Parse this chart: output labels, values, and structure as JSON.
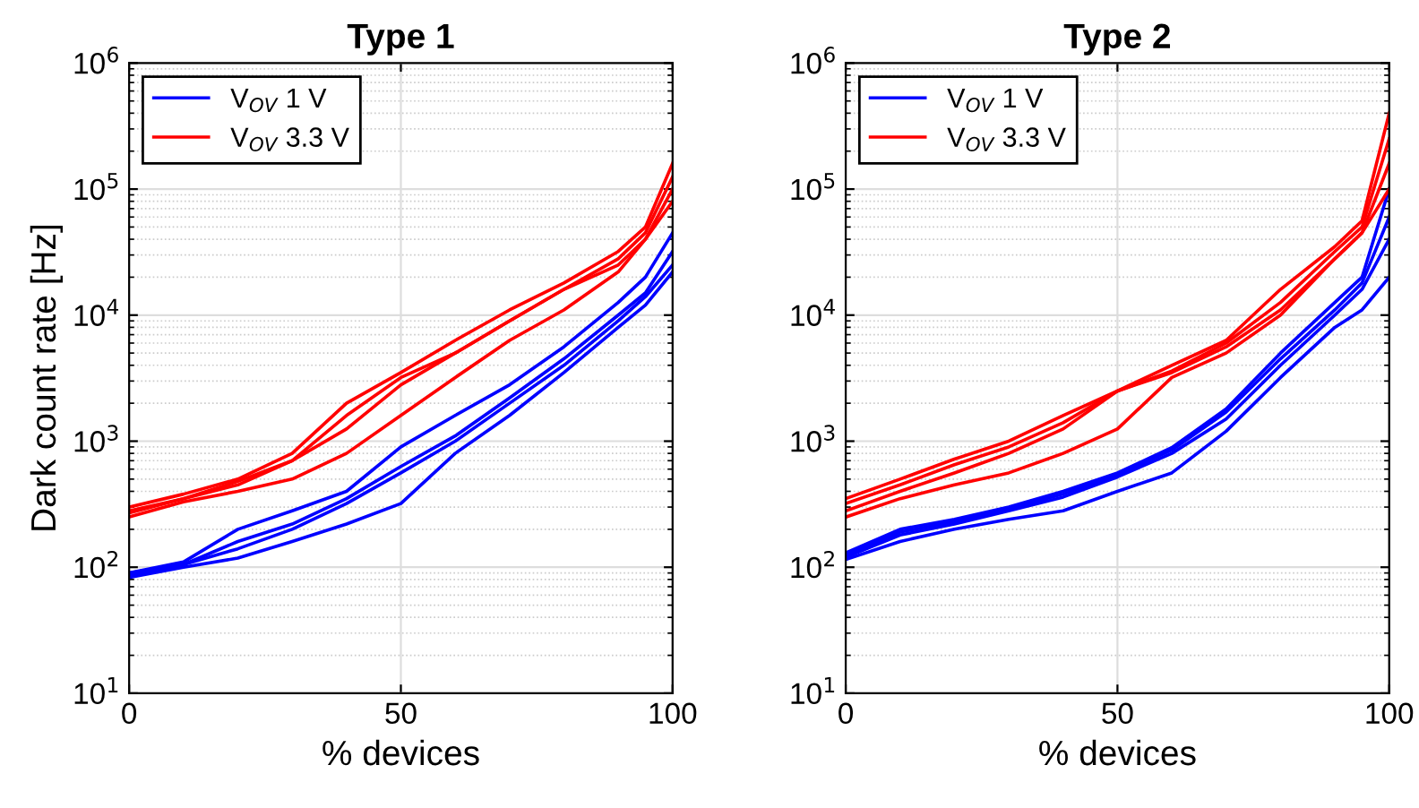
{
  "chart_data": [
    {
      "type": "line",
      "title": "Type 1",
      "xlabel": "% devices",
      "ylabel": "Dark count rate [Hz]",
      "log": "y",
      "grid": true,
      "legend": "top left",
      "x": [
        0,
        10,
        20,
        30,
        40,
        50,
        60,
        70,
        80,
        90,
        95,
        100
      ],
      "xlim": [
        0,
        100
      ],
      "xticks": [
        0,
        50,
        100
      ],
      "ylim": [
        10,
        1000000
      ],
      "yticks": [
        {
          "value": 10,
          "label": "10$^{1}$"
        },
        {
          "value": 100,
          "label": "10$^{2}$"
        },
        {
          "value": 1000,
          "label": "10$^{3}$"
        },
        {
          "value": 10000,
          "label": "10$^{4}$"
        },
        {
          "value": 100000,
          "label": "10$^{5}$"
        },
        {
          "value": 1000000,
          "label": "10$^{6}$"
        }
      ],
      "series": [
        {
          "name": "V$_{OV}$ 1 V",
          "color": "#0000ff",
          "values": [
            90,
            110,
            200,
            280,
            400,
            900,
            1600,
            2800,
            5600,
            12600,
            20000,
            45000
          ]
        },
        {
          "name": "V$_{OV}$ 3.3 V",
          "color": "#ff0000",
          "values": [
            300,
            380,
            500,
            800,
            2000,
            3500,
            6300,
            11000,
            18000,
            32000,
            50000,
            160000
          ]
        },
        {
          "color": "#0000ff",
          "values": [
            90,
            105,
            160,
            220,
            350,
            630,
            1100,
            2200,
            4500,
            10000,
            15000,
            32000
          ]
        },
        {
          "color": "#0000ff",
          "values": [
            85,
            105,
            140,
            200,
            320,
            560,
            1000,
            2000,
            4000,
            9000,
            14000,
            25000
          ]
        },
        {
          "color": "#0000ff",
          "values": [
            83,
            100,
            118,
            160,
            220,
            320,
            800,
            1600,
            3500,
            8000,
            12000,
            22000
          ]
        },
        {
          "color": "#ff0000",
          "values": [
            280,
            350,
            480,
            700,
            1600,
            3200,
            5000,
            9000,
            16000,
            28000,
            45000,
            125000
          ]
        },
        {
          "color": "#ff0000",
          "values": [
            270,
            350,
            450,
            700,
            1250,
            2800,
            5000,
            9000,
            16000,
            25000,
            40000,
            100000
          ]
        },
        {
          "color": "#ff0000",
          "values": [
            250,
            330,
            400,
            500,
            800,
            1600,
            3200,
            6300,
            11000,
            22000,
            40000,
            80000
          ]
        }
      ]
    },
    {
      "type": "line",
      "title": "Type 2",
      "xlabel": "% devices",
      "log": "y",
      "grid": true,
      "legend": "top left",
      "x": [
        0,
        10,
        20,
        30,
        40,
        50,
        60,
        70,
        80,
        90,
        95,
        100
      ],
      "xlim": [
        0,
        100
      ],
      "xticks": [
        0,
        50,
        100
      ],
      "ylim": [
        10,
        1000000
      ],
      "yticks": [
        {
          "value": 10,
          "label": "10$^{1}$"
        },
        {
          "value": 100,
          "label": "10$^{2}$"
        },
        {
          "value": 1000,
          "label": "10$^{3}$"
        },
        {
          "value": 10000,
          "label": "10$^{4}$"
        },
        {
          "value": 100000,
          "label": "10$^{5}$"
        },
        {
          "value": 1000000,
          "label": "10$^{6}$"
        }
      ],
      "series": [
        {
          "name": "V$_{OV}$ 1 V",
          "color": "#0000ff",
          "values": [
            130,
            200,
            240,
            300,
            400,
            560,
            890,
            1800,
            5000,
            12600,
            20000,
            100000
          ]
        },
        {
          "name": "V$_{OV}$ 3.3 V",
          "color": "#ff0000",
          "values": [
            350,
            500,
            720,
            1000,
            1600,
            2500,
            4000,
            6300,
            16000,
            35000,
            56000,
            400000
          ]
        },
        {
          "color": "#0000ff",
          "values": [
            125,
            190,
            230,
            290,
            380,
            540,
            850,
            1700,
            4500,
            11000,
            18000,
            60000
          ]
        },
        {
          "color": "#0000ff",
          "values": [
            120,
            180,
            220,
            280,
            360,
            520,
            800,
            1500,
            4000,
            10000,
            16000,
            40000
          ]
        },
        {
          "color": "#0000ff",
          "values": [
            115,
            160,
            200,
            240,
            280,
            400,
            560,
            1200,
            3200,
            8000,
            11000,
            20000
          ]
        },
        {
          "color": "#ff0000",
          "values": [
            320,
            450,
            650,
            900,
            1400,
            2500,
            3600,
            6000,
            12600,
            32000,
            50000,
            250000
          ]
        },
        {
          "color": "#ff0000",
          "values": [
            280,
            400,
            560,
            800,
            1250,
            2500,
            3500,
            5600,
            11000,
            28000,
            45000,
            160000
          ]
        },
        {
          "color": "#ff0000",
          "values": [
            250,
            350,
            450,
            560,
            800,
            1250,
            3200,
            5000,
            10000,
            28000,
            45000,
            100000
          ]
        }
      ]
    }
  ]
}
